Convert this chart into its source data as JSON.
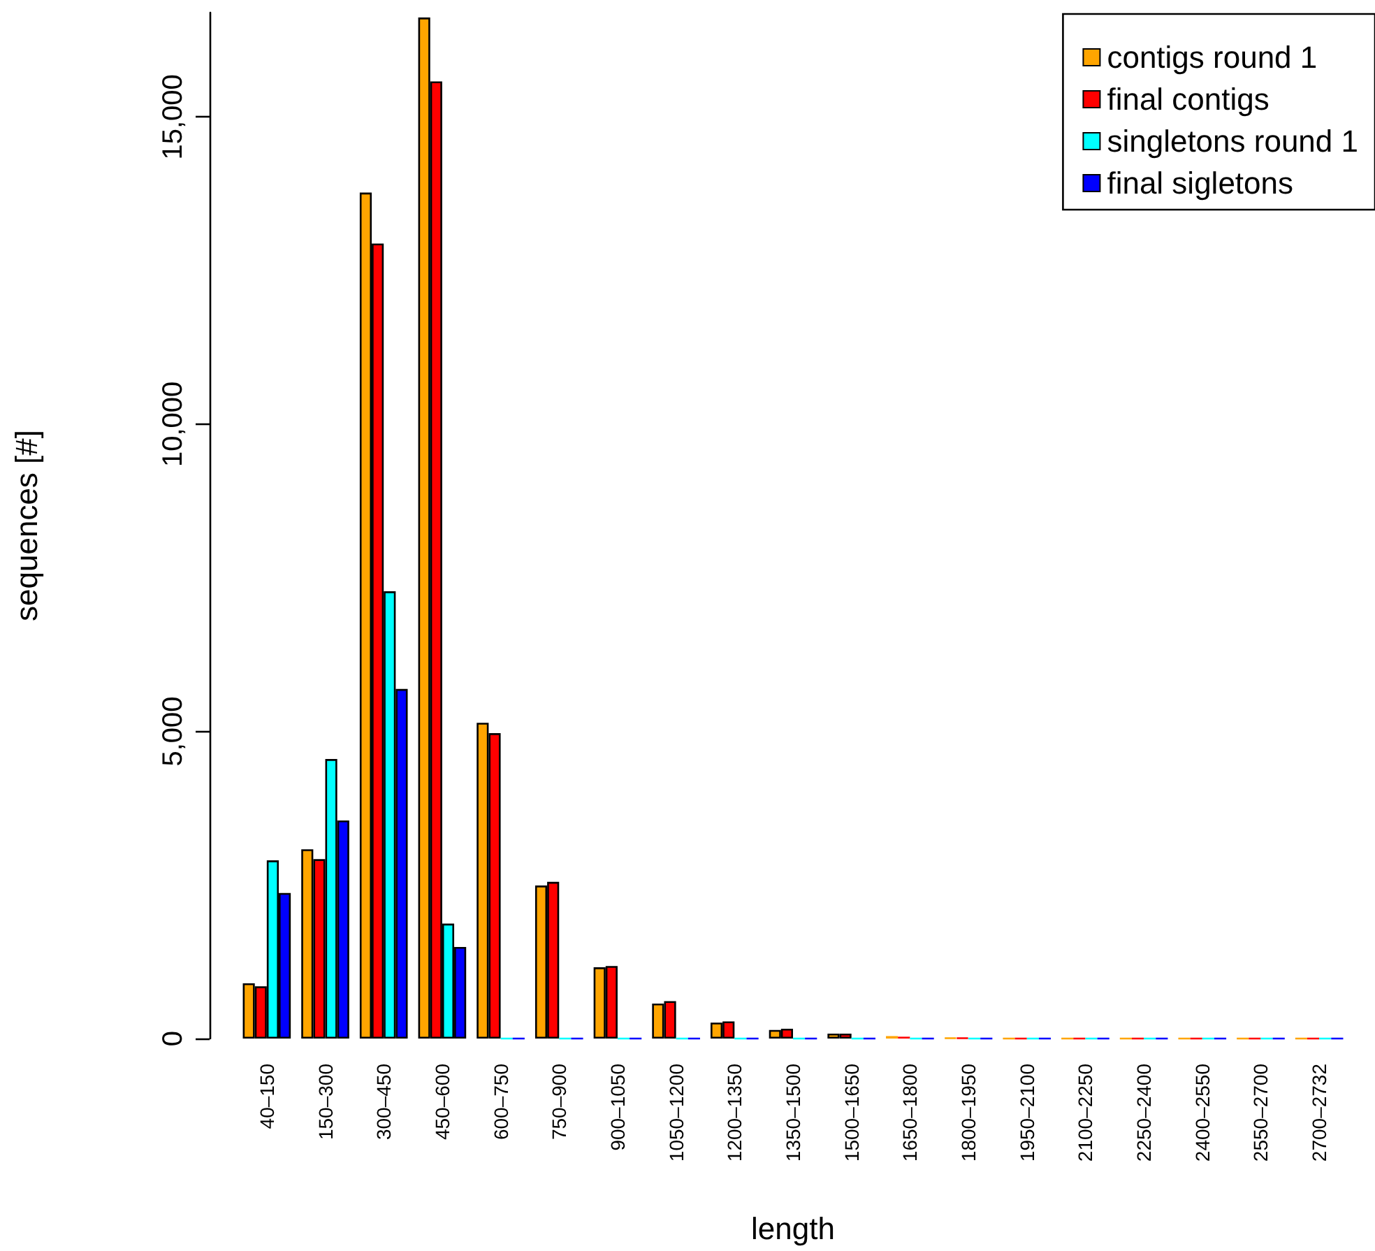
{
  "chart_data": {
    "type": "bar",
    "xlabel": "length",
    "ylabel": "sequences [#]",
    "categories": [
      "40–150",
      "150–300",
      "300–450",
      "450–600",
      "600–750",
      "750–900",
      "900–1050",
      "1050–1200",
      "1200–1350",
      "1350–1500",
      "1500–1650",
      "1650–1800",
      "1800–1950",
      "1950–2100",
      "2100–2250",
      "2250–2400",
      "2400–2550",
      "2550–2700",
      "2700–2732"
    ],
    "series": [
      {
        "name": "contigs round 1",
        "color": "#ffa500",
        "values": [
          900,
          3080,
          13770,
          16620,
          5140,
          2490,
          1160,
          570,
          260,
          140,
          80,
          40,
          10,
          0,
          0,
          0,
          0,
          0,
          0
        ]
      },
      {
        "name": "final contigs",
        "color": "#ff0000",
        "values": [
          850,
          2920,
          12940,
          15580,
          4970,
          2550,
          1180,
          610,
          280,
          160,
          80,
          30,
          10,
          0,
          0,
          0,
          0,
          0,
          0
        ]
      },
      {
        "name": "singletons round 1",
        "color": "#00ffff",
        "values": [
          2900,
          4550,
          7280,
          1870,
          0,
          0,
          0,
          0,
          0,
          0,
          0,
          0,
          0,
          0,
          0,
          0,
          0,
          0,
          0
        ]
      },
      {
        "name": "final sigletons",
        "color": "#0000ff",
        "values": [
          2370,
          3550,
          5690,
          1490,
          0,
          0,
          0,
          0,
          0,
          0,
          0,
          0,
          0,
          0,
          0,
          0,
          0,
          0,
          0
        ]
      }
    ],
    "ylim": [
      0,
      16700
    ],
    "yticks": [
      0,
      {
        "value": 5000,
        "label": "5,000"
      },
      {
        "value": 10000,
        "label": "10,000"
      },
      {
        "value": 15000,
        "label": "15,000"
      }
    ],
    "grid": false,
    "legend": "top right"
  }
}
